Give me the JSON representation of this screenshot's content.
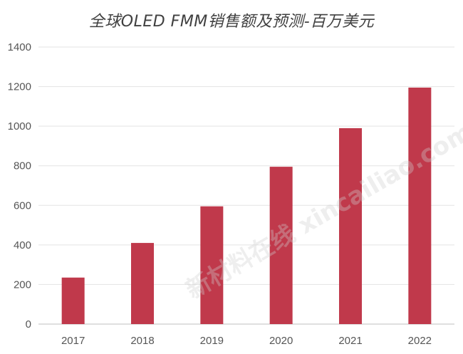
{
  "chart_data": {
    "type": "bar",
    "title": "全球OLED FMM销售额及预测-百万美元",
    "categories": [
      "2017",
      "2018",
      "2019",
      "2020",
      "2021",
      "2022"
    ],
    "values": [
      235,
      410,
      595,
      795,
      990,
      1195
    ],
    "ylim": [
      0,
      1400
    ],
    "yticks": [
      0,
      200,
      400,
      600,
      800,
      1000,
      1200,
      1400
    ],
    "grid": true,
    "bar_color": "#c0394b",
    "watermark": "新材料在线 xincailiao.com"
  }
}
